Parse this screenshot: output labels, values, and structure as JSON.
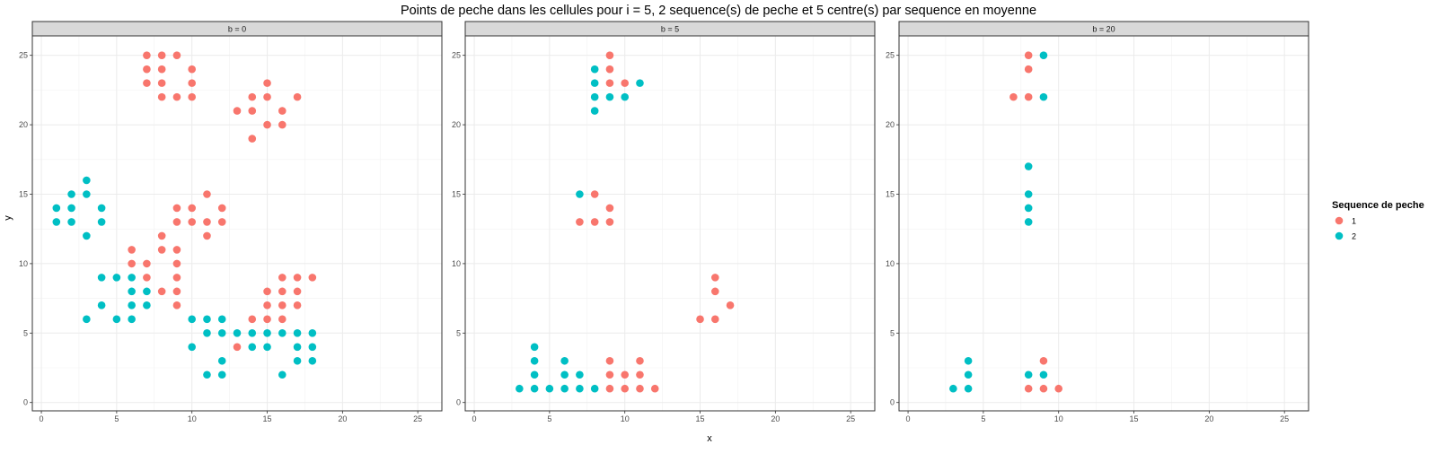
{
  "chart_data": {
    "type": "scatter",
    "title": "Points de peche dans les cellules pour i = 5, 2 sequence(s) de peche et 5 centre(s) par sequence en moyenne",
    "xlabel": "x",
    "ylabel": "y",
    "xlim": [
      -0.6,
      26.6
    ],
    "ylim": [
      -0.6,
      26.4
    ],
    "x_ticks": [
      0,
      5,
      10,
      15,
      20,
      25
    ],
    "y_ticks": [
      0,
      5,
      10,
      15,
      20,
      25
    ],
    "grid": true,
    "legend": {
      "title": "Sequence de peche",
      "placement": "right",
      "entries": [
        {
          "label": "1",
          "color": "#F8766D"
        },
        {
          "label": "2",
          "color": "#00BFC4"
        }
      ]
    },
    "colors": {
      "1": "#F8766D",
      "2": "#00BFC4"
    },
    "panels": [
      {
        "strip": "b = 0",
        "series": [
          {
            "seq": "1",
            "points": [
              [
                7,
                25
              ],
              [
                8,
                25
              ],
              [
                9,
                25
              ],
              [
                7,
                24
              ],
              [
                8,
                24
              ],
              [
                10,
                24
              ],
              [
                7,
                23
              ],
              [
                8,
                23
              ],
              [
                10,
                23
              ],
              [
                8,
                22
              ],
              [
                9,
                22
              ],
              [
                10,
                22
              ],
              [
                15,
                23
              ],
              [
                14,
                22
              ],
              [
                15,
                22
              ],
              [
                17,
                22
              ],
              [
                13,
                21
              ],
              [
                14,
                21
              ],
              [
                16,
                21
              ],
              [
                15,
                20
              ],
              [
                16,
                20
              ],
              [
                14,
                19
              ],
              [
                11,
                15
              ],
              [
                9,
                14
              ],
              [
                10,
                14
              ],
              [
                12,
                14
              ],
              [
                9,
                13
              ],
              [
                10,
                13
              ],
              [
                11,
                13
              ],
              [
                12,
                13
              ],
              [
                11,
                12
              ],
              [
                8,
                12
              ],
              [
                6,
                11
              ],
              [
                8,
                11
              ],
              [
                9,
                11
              ],
              [
                6,
                10
              ],
              [
                7,
                10
              ],
              [
                9,
                10
              ],
              [
                7,
                9
              ],
              [
                9,
                9
              ],
              [
                8,
                8
              ],
              [
                9,
                8
              ],
              [
                9,
                7
              ],
              [
                16,
                9
              ],
              [
                17,
                9
              ],
              [
                18,
                9
              ],
              [
                15,
                8
              ],
              [
                16,
                8
              ],
              [
                17,
                8
              ],
              [
                15,
                7
              ],
              [
                16,
                7
              ],
              [
                17,
                7
              ],
              [
                14,
                6
              ],
              [
                15,
                6
              ],
              [
                16,
                6
              ],
              [
                13,
                4
              ]
            ]
          },
          {
            "seq": "2",
            "points": [
              [
                3,
                16
              ],
              [
                2,
                15
              ],
              [
                3,
                15
              ],
              [
                1,
                14
              ],
              [
                2,
                14
              ],
              [
                4,
                14
              ],
              [
                1,
                13
              ],
              [
                2,
                13
              ],
              [
                4,
                13
              ],
              [
                3,
                12
              ],
              [
                4,
                9
              ],
              [
                5,
                9
              ],
              [
                6,
                9
              ],
              [
                6,
                8
              ],
              [
                7,
                8
              ],
              [
                4,
                7
              ],
              [
                6,
                7
              ],
              [
                7,
                7
              ],
              [
                3,
                6
              ],
              [
                5,
                6
              ],
              [
                6,
                6
              ],
              [
                10,
                6
              ],
              [
                11,
                6
              ],
              [
                12,
                6
              ],
              [
                11,
                5
              ],
              [
                12,
                5
              ],
              [
                13,
                5
              ],
              [
                14,
                5
              ],
              [
                15,
                5
              ],
              [
                16,
                5
              ],
              [
                17,
                5
              ],
              [
                18,
                5
              ],
              [
                10,
                4
              ],
              [
                14,
                4
              ],
              [
                15,
                4
              ],
              [
                17,
                4
              ],
              [
                18,
                4
              ],
              [
                12,
                3
              ],
              [
                17,
                3
              ],
              [
                18,
                3
              ],
              [
                11,
                2
              ],
              [
                12,
                2
              ],
              [
                16,
                2
              ]
            ]
          }
        ]
      },
      {
        "strip": "b = 5",
        "series": [
          {
            "seq": "1",
            "points": [
              [
                9,
                25
              ],
              [
                9,
                24
              ],
              [
                9,
                23
              ],
              [
                10,
                23
              ],
              [
                8,
                15
              ],
              [
                9,
                14
              ],
              [
                7,
                13
              ],
              [
                8,
                13
              ],
              [
                9,
                13
              ],
              [
                16,
                9
              ],
              [
                16,
                8
              ],
              [
                17,
                7
              ],
              [
                15,
                6
              ],
              [
                16,
                6
              ],
              [
                9,
                3
              ],
              [
                11,
                3
              ],
              [
                9,
                2
              ],
              [
                10,
                2
              ],
              [
                11,
                2
              ],
              [
                9,
                1
              ],
              [
                10,
                1
              ],
              [
                11,
                1
              ],
              [
                12,
                1
              ]
            ]
          },
          {
            "seq": "2",
            "points": [
              [
                8,
                24
              ],
              [
                8,
                23
              ],
              [
                11,
                23
              ],
              [
                8,
                22
              ],
              [
                9,
                22
              ],
              [
                10,
                22
              ],
              [
                8,
                21
              ],
              [
                7,
                15
              ],
              [
                4,
                4
              ],
              [
                4,
                3
              ],
              [
                6,
                3
              ],
              [
                4,
                2
              ],
              [
                6,
                2
              ],
              [
                7,
                2
              ],
              [
                3,
                1
              ],
              [
                4,
                1
              ],
              [
                5,
                1
              ],
              [
                6,
                1
              ],
              [
                7,
                1
              ],
              [
                8,
                1
              ]
            ]
          }
        ]
      },
      {
        "strip": "b = 20",
        "series": [
          {
            "seq": "1",
            "points": [
              [
                8,
                25
              ],
              [
                8,
                24
              ],
              [
                7,
                22
              ],
              [
                8,
                22
              ],
              [
                9,
                3
              ],
              [
                8,
                1
              ],
              [
                9,
                1
              ],
              [
                10,
                1
              ]
            ]
          },
          {
            "seq": "2",
            "points": [
              [
                9,
                25
              ],
              [
                9,
                22
              ],
              [
                8,
                17
              ],
              [
                8,
                15
              ],
              [
                8,
                14
              ],
              [
                8,
                13
              ],
              [
                4,
                3
              ],
              [
                4,
                2
              ],
              [
                8,
                2
              ],
              [
                9,
                2
              ],
              [
                3,
                1
              ],
              [
                4,
                1
              ]
            ]
          }
        ]
      }
    ]
  }
}
